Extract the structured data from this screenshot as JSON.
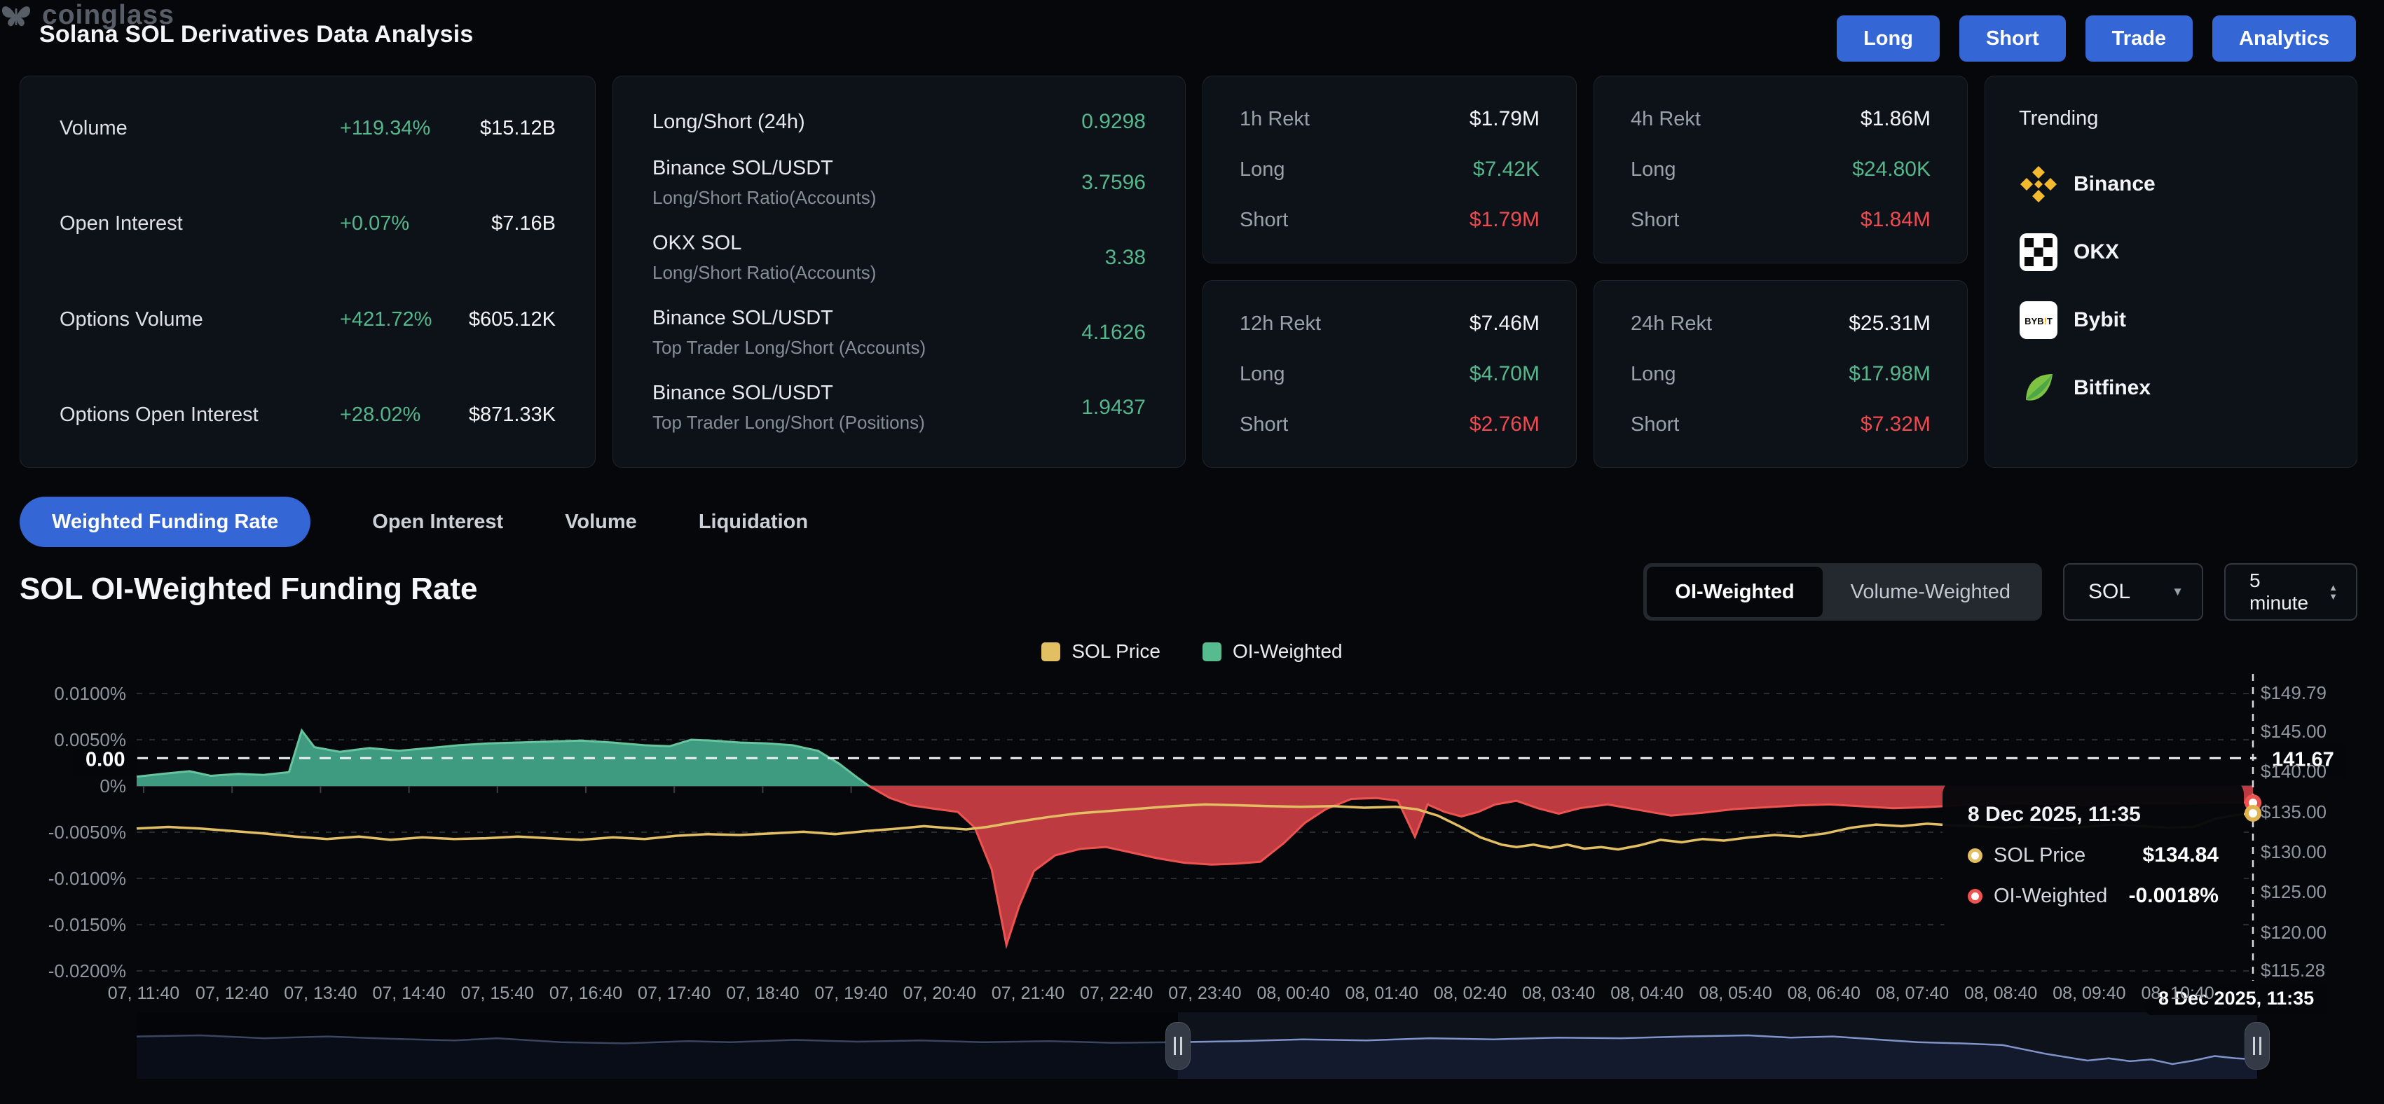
{
  "header": {
    "title": "Solana SOL Derivatives Data Analysis",
    "buttons": [
      "Long",
      "Short",
      "Trade",
      "Analytics"
    ]
  },
  "stats_card": {
    "rows": [
      {
        "label": "Volume",
        "change": "+119.34%",
        "value": "$15.12B"
      },
      {
        "label": "Open Interest",
        "change": "+0.07%",
        "value": "$7.16B"
      },
      {
        "label": "Options Volume",
        "change": "+421.72%",
        "value": "$605.12K"
      },
      {
        "label": "Options Open Interest",
        "change": "+28.02%",
        "value": "$871.33K"
      }
    ]
  },
  "ratios_card": {
    "rows": [
      {
        "title": "Long/Short (24h)",
        "subtitle": "",
        "value": "0.9298"
      },
      {
        "title": "Binance SOL/USDT",
        "subtitle": "Long/Short Ratio(Accounts)",
        "value": "3.7596"
      },
      {
        "title": "OKX SOL",
        "subtitle": "Long/Short Ratio(Accounts)",
        "value": "3.38"
      },
      {
        "title": "Binance SOL/USDT",
        "subtitle": "Top Trader Long/Short (Accounts)",
        "value": "4.1626"
      },
      {
        "title": "Binance SOL/USDT",
        "subtitle": "Top Trader Long/Short (Positions)",
        "value": "1.9437"
      }
    ]
  },
  "rekt": {
    "long_label": "Long",
    "short_label": "Short",
    "cards": [
      {
        "title": "1h Rekt",
        "total": "$1.79M",
        "long": "$7.42K",
        "short": "$1.79M"
      },
      {
        "title": "12h Rekt",
        "total": "$7.46M",
        "long": "$4.70M",
        "short": "$2.76M"
      },
      {
        "title": "4h Rekt",
        "total": "$1.86M",
        "long": "$24.80K",
        "short": "$1.84M"
      },
      {
        "title": "24h Rekt",
        "total": "$25.31M",
        "long": "$17.98M",
        "short": "$7.32M"
      }
    ]
  },
  "trending_card": {
    "title": "Trending",
    "items": [
      {
        "name": "Binance",
        "icon": "binance"
      },
      {
        "name": "OKX",
        "icon": "okx"
      },
      {
        "name": "Bybit",
        "icon": "bybit"
      },
      {
        "name": "Bitfinex",
        "icon": "bitfinex"
      }
    ]
  },
  "tabs": {
    "active": "Weighted Funding Rate",
    "items": [
      "Weighted Funding Rate",
      "Open Interest",
      "Volume",
      "Liquidation"
    ]
  },
  "chart_section": {
    "title": "SOL OI-Weighted Funding Rate",
    "toggle": {
      "options": [
        "OI-Weighted",
        "Volume-Weighted"
      ],
      "active": "OI-Weighted"
    },
    "symbol_select": "SOL",
    "interval_select": "5 minute"
  },
  "watermark": "coinglass",
  "chart_data": {
    "type": "area+line",
    "title": "SOL OI-Weighted Funding Rate",
    "legend": [
      {
        "label": "SOL Price",
        "color": "#e3bf63"
      },
      {
        "label": "OI-Weighted",
        "color": "#56bb8e"
      }
    ],
    "colors": {
      "price_line": "#e3bf63",
      "funding_pos_fill": "#3f9b80",
      "funding_pos_line": "#66c59e",
      "funding_neg_fill": "#bd3a41",
      "funding_neg_line": "#ef5350",
      "grid": "#282d34",
      "nav_line": "#8094ca",
      "nav_fill": "#131a2d",
      "accent_blue": "#3566d6",
      "green": "#55b78b",
      "red": "#ee4a50"
    },
    "y_left": {
      "unit": "%",
      "ticks": [
        {
          "label": "0.0100%",
          "value": 0.01
        },
        {
          "label": "0.0050%",
          "value": 0.005
        },
        {
          "label": "0%",
          "value": 0
        },
        {
          "label": "-0.0050%",
          "value": -0.005
        },
        {
          "label": "-0.0100%",
          "value": -0.01
        },
        {
          "label": "-0.0150%",
          "value": -0.015
        },
        {
          "label": "-0.0200%",
          "value": -0.02
        }
      ]
    },
    "y_right": {
      "unit": "$",
      "range": [
        115.28,
        149.79
      ],
      "ticks": [
        {
          "label": "$149.79",
          "value": 149.79
        },
        {
          "label": "$145.00",
          "value": 145.0
        },
        {
          "label": "$140.00",
          "value": 140.0
        },
        {
          "label": "$135.00",
          "value": 135.0
        },
        {
          "label": "$130.00",
          "value": 130.0
        },
        {
          "label": "$125.00",
          "value": 125.0
        },
        {
          "label": "$120.00",
          "value": 120.0
        },
        {
          "label": "$115.28",
          "value": 115.28
        }
      ]
    },
    "x_ticks": [
      "07, 11:40",
      "07, 12:40",
      "07, 13:40",
      "07, 14:40",
      "07, 15:40",
      "07, 16:40",
      "07, 17:40",
      "07, 18:40",
      "07, 19:40",
      "07, 20:40",
      "07, 21:40",
      "07, 22:40",
      "07, 23:40",
      "08, 00:40",
      "08, 01:40",
      "08, 02:40",
      "08, 03:40",
      "08, 04:40",
      "08, 05:40",
      "08, 06:40",
      "08, 07:40",
      "08, 08:40",
      "08, 09:40",
      "08, 10:40"
    ],
    "reference_line": {
      "left_label": "0.00",
      "right_label": "141.67",
      "price": 141.67
    },
    "crosshair_label": "8 Dec 2025, 11:35",
    "tooltip": {
      "title": "8 Dec 2025, 11:35",
      "rows": [
        {
          "label": "SOL Price",
          "value": "$134.84",
          "color": "#e3bf63"
        },
        {
          "label": "OI-Weighted",
          "value": "-0.0018%",
          "color": "#ef5350"
        }
      ]
    },
    "last_values": {
      "price": 134.84,
      "funding_pct": -0.0018
    },
    "series": {
      "funding_pct": [
        [
          0.0,
          0.001
        ],
        [
          0.012,
          0.0013
        ],
        [
          0.025,
          0.0016
        ],
        [
          0.035,
          0.0011
        ],
        [
          0.048,
          0.0013
        ],
        [
          0.06,
          0.0012
        ],
        [
          0.072,
          0.0015
        ],
        [
          0.078,
          0.006
        ],
        [
          0.084,
          0.0042
        ],
        [
          0.096,
          0.0037
        ],
        [
          0.11,
          0.0041
        ],
        [
          0.124,
          0.0038
        ],
        [
          0.138,
          0.0041
        ],
        [
          0.152,
          0.0044
        ],
        [
          0.166,
          0.0046
        ],
        [
          0.18,
          0.0047
        ],
        [
          0.195,
          0.0048
        ],
        [
          0.21,
          0.0049
        ],
        [
          0.225,
          0.0047
        ],
        [
          0.24,
          0.0044
        ],
        [
          0.252,
          0.0043
        ],
        [
          0.262,
          0.005
        ],
        [
          0.272,
          0.0049
        ],
        [
          0.285,
          0.0047
        ],
        [
          0.298,
          0.0046
        ],
        [
          0.31,
          0.0044
        ],
        [
          0.322,
          0.0038
        ],
        [
          0.332,
          0.0024
        ],
        [
          0.34,
          0.001
        ],
        [
          0.346,
          0.0
        ],
        [
          0.356,
          -0.0013
        ],
        [
          0.366,
          -0.0021
        ],
        [
          0.378,
          -0.0025
        ],
        [
          0.388,
          -0.0028
        ],
        [
          0.396,
          -0.0045
        ],
        [
          0.404,
          -0.009
        ],
        [
          0.411,
          -0.0172
        ],
        [
          0.417,
          -0.013
        ],
        [
          0.424,
          -0.0092
        ],
        [
          0.434,
          -0.0075
        ],
        [
          0.446,
          -0.0068
        ],
        [
          0.458,
          -0.0066
        ],
        [
          0.47,
          -0.0072
        ],
        [
          0.482,
          -0.0078
        ],
        [
          0.495,
          -0.0083
        ],
        [
          0.508,
          -0.0085
        ],
        [
          0.52,
          -0.0084
        ],
        [
          0.531,
          -0.0082
        ],
        [
          0.542,
          -0.0062
        ],
        [
          0.552,
          -0.004
        ],
        [
          0.562,
          -0.0025
        ],
        [
          0.574,
          -0.0014
        ],
        [
          0.586,
          -0.0013
        ],
        [
          0.596,
          -0.0016
        ],
        [
          0.604,
          -0.0055
        ],
        [
          0.61,
          -0.002
        ],
        [
          0.618,
          -0.0028
        ],
        [
          0.626,
          -0.0033
        ],
        [
          0.634,
          -0.0028
        ],
        [
          0.642,
          -0.002
        ],
        [
          0.652,
          -0.0016
        ],
        [
          0.662,
          -0.0024
        ],
        [
          0.672,
          -0.003
        ],
        [
          0.682,
          -0.0024
        ],
        [
          0.695,
          -0.002
        ],
        [
          0.71,
          -0.0026
        ],
        [
          0.725,
          -0.0032
        ],
        [
          0.74,
          -0.0029
        ],
        [
          0.755,
          -0.0025
        ],
        [
          0.77,
          -0.0023
        ],
        [
          0.785,
          -0.0021
        ],
        [
          0.8,
          -0.002
        ],
        [
          0.815,
          -0.0022
        ],
        [
          0.83,
          -0.0024
        ],
        [
          0.845,
          -0.0023
        ],
        [
          0.86,
          -0.0021
        ],
        [
          0.875,
          -0.002
        ],
        [
          0.89,
          -0.0019
        ],
        [
          0.905,
          -0.002
        ],
        [
          0.92,
          -0.0021
        ],
        [
          0.935,
          -0.002
        ],
        [
          0.95,
          -0.0019
        ],
        [
          0.965,
          -0.0019
        ],
        [
          0.98,
          -0.0018
        ],
        [
          1.0,
          -0.0018
        ]
      ],
      "price_usd": [
        [
          0.0,
          132.9
        ],
        [
          0.015,
          133.1
        ],
        [
          0.03,
          132.9
        ],
        [
          0.045,
          132.6
        ],
        [
          0.06,
          132.3
        ],
        [
          0.075,
          131.9
        ],
        [
          0.09,
          131.6
        ],
        [
          0.105,
          131.9
        ],
        [
          0.12,
          131.5
        ],
        [
          0.135,
          131.8
        ],
        [
          0.15,
          131.6
        ],
        [
          0.165,
          131.7
        ],
        [
          0.18,
          131.9
        ],
        [
          0.195,
          131.7
        ],
        [
          0.21,
          131.5
        ],
        [
          0.225,
          131.8
        ],
        [
          0.24,
          131.6
        ],
        [
          0.255,
          132.0
        ],
        [
          0.27,
          132.2
        ],
        [
          0.285,
          132.1
        ],
        [
          0.3,
          132.3
        ],
        [
          0.315,
          132.5
        ],
        [
          0.33,
          132.2
        ],
        [
          0.345,
          132.6
        ],
        [
          0.36,
          132.9
        ],
        [
          0.372,
          133.2
        ],
        [
          0.382,
          133.0
        ],
        [
          0.392,
          132.8
        ],
        [
          0.402,
          133.1
        ],
        [
          0.415,
          133.7
        ],
        [
          0.43,
          134.3
        ],
        [
          0.445,
          134.8
        ],
        [
          0.46,
          135.1
        ],
        [
          0.475,
          135.4
        ],
        [
          0.49,
          135.7
        ],
        [
          0.505,
          135.9
        ],
        [
          0.52,
          135.8
        ],
        [
          0.535,
          135.7
        ],
        [
          0.55,
          135.6
        ],
        [
          0.565,
          135.7
        ],
        [
          0.58,
          135.5
        ],
        [
          0.595,
          135.6
        ],
        [
          0.605,
          135.3
        ],
        [
          0.615,
          134.5
        ],
        [
          0.625,
          133.2
        ],
        [
          0.635,
          131.8
        ],
        [
          0.645,
          130.9
        ],
        [
          0.652,
          130.6
        ],
        [
          0.66,
          130.9
        ],
        [
          0.668,
          130.5
        ],
        [
          0.676,
          130.9
        ],
        [
          0.684,
          130.4
        ],
        [
          0.692,
          130.6
        ],
        [
          0.7,
          130.3
        ],
        [
          0.71,
          130.8
        ],
        [
          0.72,
          131.5
        ],
        [
          0.73,
          131.2
        ],
        [
          0.74,
          131.6
        ],
        [
          0.75,
          131.4
        ],
        [
          0.762,
          131.8
        ],
        [
          0.774,
          132.1
        ],
        [
          0.786,
          131.9
        ],
        [
          0.798,
          132.3
        ],
        [
          0.81,
          133.0
        ],
        [
          0.822,
          133.4
        ],
        [
          0.834,
          133.2
        ],
        [
          0.846,
          133.5
        ],
        [
          0.858,
          133.3
        ],
        [
          0.87,
          133.2
        ],
        [
          0.882,
          133.0
        ],
        [
          0.894,
          133.2
        ],
        [
          0.906,
          132.9
        ],
        [
          0.92,
          133.1
        ],
        [
          0.934,
          133.4
        ],
        [
          0.948,
          133.2
        ],
        [
          0.96,
          133.0
        ],
        [
          0.972,
          133.1
        ],
        [
          0.982,
          134.1
        ],
        [
          0.99,
          134.5
        ],
        [
          1.0,
          134.84
        ]
      ],
      "navigator": [
        [
          0.0,
          0.3
        ],
        [
          0.03,
          0.28
        ],
        [
          0.06,
          0.33
        ],
        [
          0.09,
          0.3
        ],
        [
          0.12,
          0.34
        ],
        [
          0.15,
          0.37
        ],
        [
          0.17,
          0.33
        ],
        [
          0.2,
          0.4
        ],
        [
          0.23,
          0.42
        ],
        [
          0.26,
          0.38
        ],
        [
          0.28,
          0.4
        ],
        [
          0.31,
          0.36
        ],
        [
          0.34,
          0.39
        ],
        [
          0.37,
          0.37
        ],
        [
          0.4,
          0.4
        ],
        [
          0.43,
          0.38
        ],
        [
          0.46,
          0.41
        ],
        [
          0.49,
          0.4
        ],
        [
          0.52,
          0.38
        ],
        [
          0.55,
          0.35
        ],
        [
          0.58,
          0.37
        ],
        [
          0.61,
          0.33
        ],
        [
          0.64,
          0.35
        ],
        [
          0.67,
          0.32
        ],
        [
          0.7,
          0.33
        ],
        [
          0.73,
          0.3
        ],
        [
          0.76,
          0.28
        ],
        [
          0.78,
          0.32
        ],
        [
          0.8,
          0.3
        ],
        [
          0.82,
          0.35
        ],
        [
          0.84,
          0.4
        ],
        [
          0.86,
          0.42
        ],
        [
          0.88,
          0.45
        ],
        [
          0.9,
          0.6
        ],
        [
          0.92,
          0.72
        ],
        [
          0.93,
          0.68
        ],
        [
          0.94,
          0.73
        ],
        [
          0.95,
          0.7
        ],
        [
          0.96,
          0.78
        ],
        [
          0.97,
          0.72
        ],
        [
          0.98,
          0.64
        ],
        [
          0.99,
          0.68
        ],
        [
          1.0,
          0.7
        ]
      ],
      "navigator_selection": [
        0.491,
        1.0
      ]
    }
  }
}
